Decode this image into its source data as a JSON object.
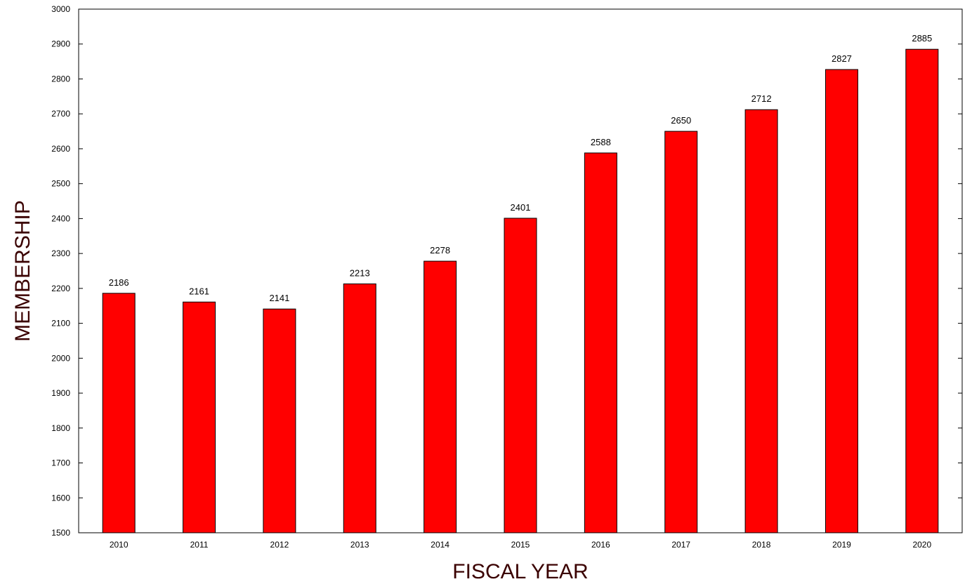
{
  "colors": {
    "bar": "#ff0000",
    "bar_border": "#000000",
    "axis": "#000000",
    "axis_title": "#3a0000"
  },
  "chart_data": {
    "type": "bar",
    "title": "",
    "xlabel": "FISCAL YEAR",
    "ylabel": "MEMBERSHIP",
    "categories": [
      "2010",
      "2011",
      "2012",
      "2013",
      "2014",
      "2015",
      "2016",
      "2017",
      "2018",
      "2019",
      "2020"
    ],
    "values": [
      2186,
      2161,
      2141,
      2213,
      2278,
      2401,
      2588,
      2650,
      2712,
      2827,
      2885
    ],
    "ylim": [
      1500,
      3000
    ],
    "yticks": [
      1500,
      1600,
      1700,
      1800,
      1900,
      2000,
      2100,
      2200,
      2300,
      2400,
      2500,
      2600,
      2700,
      2800,
      2900,
      3000
    ],
    "grid": false,
    "data_labels": true,
    "legend": "none"
  }
}
